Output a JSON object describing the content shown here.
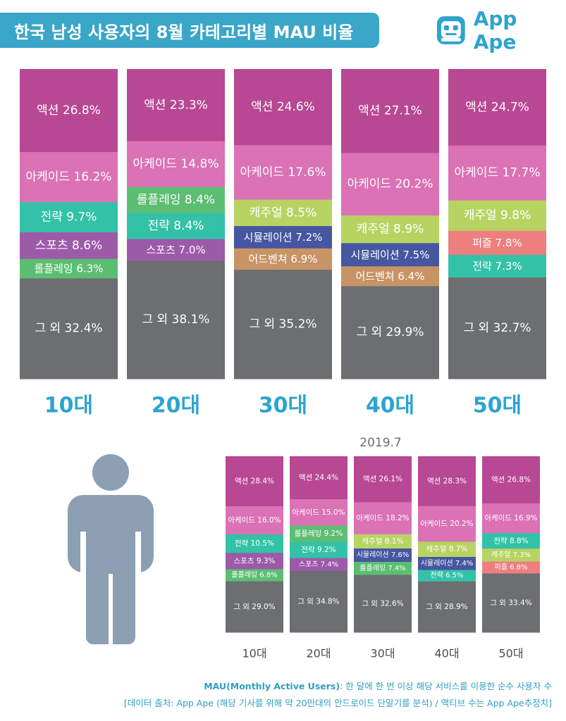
{
  "title": "한국 남성 사용자의 8월 카테고리별 MAU 비율",
  "brand": {
    "name": "App Ape",
    "color": "#2da4cf"
  },
  "colors": {
    "액션": "#b84893",
    "아케이드": "#da72b5",
    "전략": "#33c2a7",
    "스포츠": "#9d5aa9",
    "롤플레잉": "#5cbe72",
    "캐주얼": "#b7d463",
    "시뮬레이션": "#4656a0",
    "어드벤쳐": "#c89465",
    "퍼즐": "#ed7f7f",
    "그 외": "#6c6e71"
  },
  "chart_data": [
    {
      "type": "stacked_bar",
      "period": "2019.8",
      "categories": [
        "10대",
        "20대",
        "30대",
        "40대",
        "50대"
      ],
      "bars": [
        [
          {
            "name": "액션",
            "value": 26.8,
            "label": "액션 26.8%"
          },
          {
            "name": "아케이드",
            "value": 16.2,
            "label": "아케이드 16.2%"
          },
          {
            "name": "전략",
            "value": 9.7,
            "label": "전략 9.7%"
          },
          {
            "name": "스포츠",
            "value": 8.6,
            "label": "스포츠 8.6%"
          },
          {
            "name": "롤플레잉",
            "value": 6.3,
            "label": "롤플레잉 6.3%"
          },
          {
            "name": "그 외",
            "value": 32.4,
            "label": "그 외 32.4%"
          }
        ],
        [
          {
            "name": "액션",
            "value": 23.3,
            "label": "액션 23.3%"
          },
          {
            "name": "아케이드",
            "value": 14.8,
            "label": "아케이드 14.8%"
          },
          {
            "name": "롤플레잉",
            "value": 8.4,
            "label": "롤플레잉 8.4%"
          },
          {
            "name": "전략",
            "value": 8.4,
            "label": "전략 8.4%"
          },
          {
            "name": "스포츠",
            "value": 7.0,
            "label": "스포츠 7.0%"
          },
          {
            "name": "그 외",
            "value": 38.1,
            "label": "그 외 38.1%"
          }
        ],
        [
          {
            "name": "액션",
            "value": 24.6,
            "label": "액션 24.6%"
          },
          {
            "name": "아케이드",
            "value": 17.6,
            "label": "아케이드 17.6%"
          },
          {
            "name": "캐주얼",
            "value": 8.5,
            "label": "캐주얼 8.5%"
          },
          {
            "name": "시뮬레이션",
            "value": 7.2,
            "label": "시뮬레이션 7.2%"
          },
          {
            "name": "어드벤쳐",
            "value": 6.9,
            "label": "어드벤쳐 6.9%"
          },
          {
            "name": "그 외",
            "value": 35.2,
            "label": "그 외 35.2%"
          }
        ],
        [
          {
            "name": "액션",
            "value": 27.1,
            "label": "액션 27.1%"
          },
          {
            "name": "아케이드",
            "value": 20.2,
            "label": "아케이드 20.2%"
          },
          {
            "name": "캐주얼",
            "value": 8.9,
            "label": "캐주얼 8.9%"
          },
          {
            "name": "시뮬레이션",
            "value": 7.5,
            "label": "시뮬레이션 7.5%"
          },
          {
            "name": "어드벤쳐",
            "value": 6.4,
            "label": "어드벤쳐 6.4%"
          },
          {
            "name": "그 외",
            "value": 29.9,
            "label": "그 외 29.9%"
          }
        ],
        [
          {
            "name": "액션",
            "value": 24.7,
            "label": "액션 24.7%"
          },
          {
            "name": "아케이드",
            "value": 17.7,
            "label": "아케이드 17.7%"
          },
          {
            "name": "캐주얼",
            "value": 9.8,
            "label": "캐주얼 9.8%"
          },
          {
            "name": "퍼즐",
            "value": 7.8,
            "label": "퍼즐 7.8%"
          },
          {
            "name": "전략",
            "value": 7.3,
            "label": "전략 7.3%"
          },
          {
            "name": "그 외",
            "value": 32.7,
            "label": "그 외 32.7%"
          }
        ]
      ]
    },
    {
      "type": "stacked_bar",
      "period": "2019.7",
      "title": "2019.7",
      "categories": [
        "10대",
        "20대",
        "30대",
        "40대",
        "50대"
      ],
      "bars": [
        [
          {
            "name": "액션",
            "value": 28.4,
            "label": "액션 28.4%"
          },
          {
            "name": "아케이드",
            "value": 16.0,
            "label": "아케이드 16.0%"
          },
          {
            "name": "전략",
            "value": 10.5,
            "label": "전략 10.5%"
          },
          {
            "name": "스포츠",
            "value": 9.3,
            "label": "스포츠 9.3%"
          },
          {
            "name": "롤플레잉",
            "value": 6.8,
            "label": "롤플레잉 6.8%"
          },
          {
            "name": "그 외",
            "value": 29.0,
            "label": "그 외 29.0%"
          }
        ],
        [
          {
            "name": "액션",
            "value": 24.4,
            "label": "액션 24.4%"
          },
          {
            "name": "아케이드",
            "value": 15.0,
            "label": "아케이드 15.0%"
          },
          {
            "name": "롤플레잉",
            "value": 9.2,
            "label": "롤플레잉 9.2%"
          },
          {
            "name": "전략",
            "value": 9.2,
            "label": "전략 9.2%"
          },
          {
            "name": "스포츠",
            "value": 7.4,
            "label": "스포츠 7.4%"
          },
          {
            "name": "그 외",
            "value": 34.8,
            "label": "그 외 34.8%"
          }
        ],
        [
          {
            "name": "액션",
            "value": 26.1,
            "label": "액션 26.1%"
          },
          {
            "name": "아케이드",
            "value": 18.2,
            "label": "아케이드 18.2%"
          },
          {
            "name": "캐주얼",
            "value": 8.1,
            "label": "캐주얼 8.1%"
          },
          {
            "name": "시뮬레이션",
            "value": 7.6,
            "label": "시뮬레이션 7.6%"
          },
          {
            "name": "롤플레잉",
            "value": 7.4,
            "label": "롤플레잉 7.4%"
          },
          {
            "name": "그 외",
            "value": 32.6,
            "label": "그 외 32.6%"
          }
        ],
        [
          {
            "name": "액션",
            "value": 28.3,
            "label": "액션 28.3%"
          },
          {
            "name": "아케이드",
            "value": 20.2,
            "label": "아케이드 20.2%"
          },
          {
            "name": "캐주얼",
            "value": 8.7,
            "label": "캐주얼 8.7%"
          },
          {
            "name": "시뮬레이션",
            "value": 7.4,
            "label": "시뮬레이션 7.4%"
          },
          {
            "name": "전략",
            "value": 6.5,
            "label": "전략 6.5%"
          },
          {
            "name": "그 외",
            "value": 28.9,
            "label": "그 외 28.9%"
          }
        ],
        [
          {
            "name": "액션",
            "value": 26.8,
            "label": "액션 26.8%"
          },
          {
            "name": "아케이드",
            "value": 16.9,
            "label": "아케이드 16.9%"
          },
          {
            "name": "전략",
            "value": 8.8,
            "label": "전략 8.8%"
          },
          {
            "name": "캐주얼",
            "value": 7.3,
            "label": "캐주얼 7.3%"
          },
          {
            "name": "퍼즐",
            "value": 6.8,
            "label": "퍼즐 6.8%"
          },
          {
            "name": "그 외",
            "value": 33.4,
            "label": "그 외 33.4%"
          }
        ]
      ]
    }
  ],
  "footer": {
    "line1_bold": "MAU(Monthly Active Users)",
    "line1_rest": ": 한 달에 한 번 이상 해당 서비스를 이용한 순수 사용자 수",
    "line2": "[데이터 출처: App Ape (해당 기사를 위해 약 20만대의 안드로이드 단말기를 분석) / 액티브 수는 App Ape추정치]"
  }
}
